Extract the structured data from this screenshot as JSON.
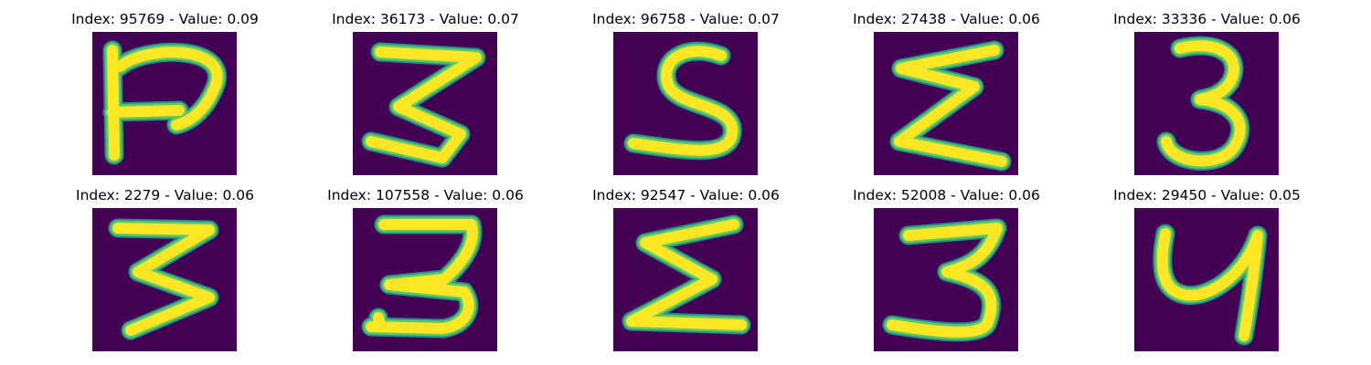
{
  "colors": {
    "background": "#440154",
    "stroke_edge": "#21918c",
    "stroke_mid": "#5ec962",
    "stroke_core": "#fde725"
  },
  "panels": [
    {
      "title": "Index: 95769 - Value: 0.09"
    },
    {
      "title": "Index: 36173 - Value: 0.07"
    },
    {
      "title": "Index: 96758 - Value: 0.07"
    },
    {
      "title": "Index: 27438 - Value: 0.06"
    },
    {
      "title": "Index: 33336 - Value: 0.06"
    },
    {
      "title": "Index: 2279 - Value: 0.06"
    },
    {
      "title": "Index: 107558 - Value: 0.06"
    },
    {
      "title": "Index: 92547 - Value: 0.06"
    },
    {
      "title": "Index: 52008 - Value: 0.06"
    },
    {
      "title": "Index: 29450 - Value: 0.05"
    }
  ]
}
